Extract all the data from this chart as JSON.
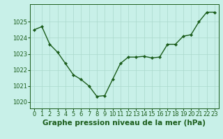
{
  "x": [
    0,
    1,
    2,
    3,
    4,
    5,
    6,
    7,
    8,
    9,
    10,
    11,
    12,
    13,
    14,
    15,
    16,
    17,
    18,
    19,
    20,
    21,
    22,
    23
  ],
  "y": [
    1024.5,
    1024.7,
    1023.6,
    1023.1,
    1022.4,
    1021.7,
    1021.4,
    1021.0,
    1020.35,
    1020.4,
    1021.4,
    1022.4,
    1022.8,
    1022.8,
    1022.85,
    1022.75,
    1022.8,
    1023.6,
    1023.6,
    1024.1,
    1024.2,
    1025.0,
    1025.6,
    1025.6
  ],
  "line_color": "#1a5c1a",
  "marker": "D",
  "marker_size": 2.2,
  "line_width": 1.0,
  "bg_color": "#c8f0e8",
  "grid_color": "#aad8cc",
  "ylim": [
    1019.6,
    1026.1
  ],
  "xlim": [
    -0.5,
    23.5
  ],
  "yticks": [
    1020,
    1021,
    1022,
    1023,
    1024,
    1025
  ],
  "xtick_labels": [
    "0",
    "1",
    "2",
    "3",
    "4",
    "5",
    "6",
    "7",
    "8",
    "9",
    "10",
    "11",
    "12",
    "13",
    "14",
    "15",
    "16",
    "17",
    "18",
    "19",
    "20",
    "21",
    "22",
    "23"
  ],
  "xlabel": "Graphe pression niveau de la mer (hPa)",
  "xlabel_fontsize": 7.5,
  "tick_fontsize": 6,
  "ytick_fontsize": 6,
  "spine_color": "#1a5c1a",
  "text_color": "#1a5c1a"
}
